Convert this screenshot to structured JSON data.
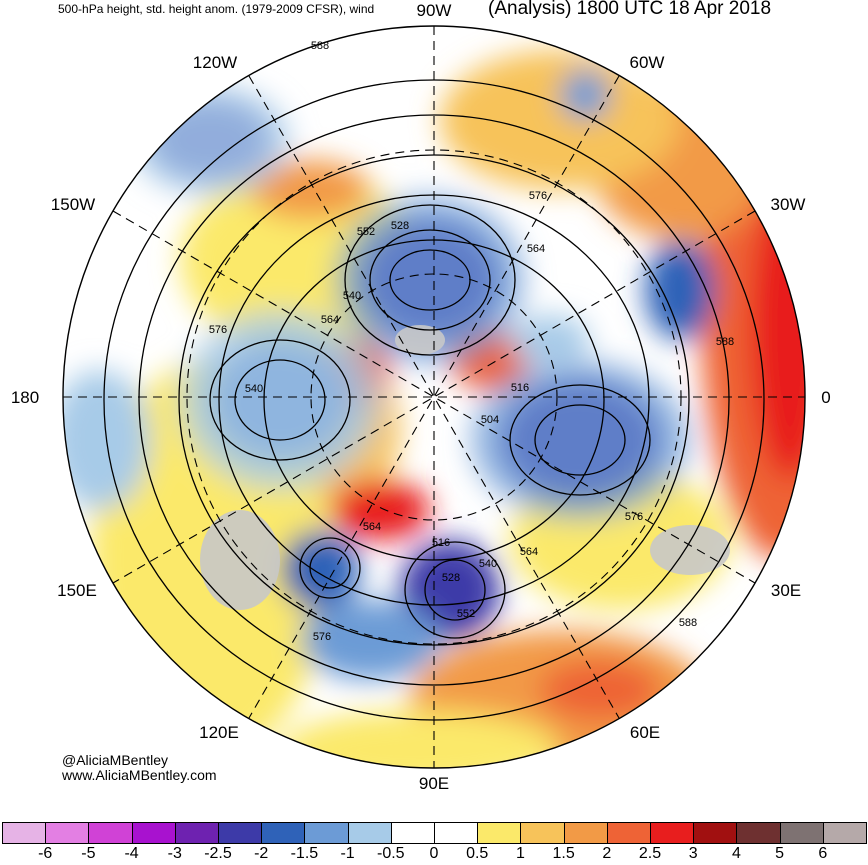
{
  "header": {
    "left": "500-hPa height, std. height anom. (1979-2009 CFSR), wind",
    "right": "(Analysis) 1800 UTC 18 Apr 2018"
  },
  "credits": {
    "twitter": "@AliciaMBentley",
    "website": "www.AliciaMBentley.com"
  },
  "longitude_labels": {
    "w90": "90W",
    "w60": "60W",
    "w30": "30W",
    "zero": "0",
    "e30": "30E",
    "e60": "60E",
    "e90": "90E",
    "e120": "120E",
    "e150": "150E",
    "d180": "180",
    "w150": "150W",
    "w120": "120W"
  },
  "contour_labels": [
    "588",
    "576",
    "564",
    "552",
    "528",
    "540",
    "564",
    "576",
    "540",
    "516",
    "504",
    "564",
    "516",
    "540",
    "528",
    "552",
    "564",
    "576",
    "576",
    "588",
    "588"
  ],
  "colorbar": {
    "colors": [
      "#e6b3e6",
      "#e37fe3",
      "#d042d6",
      "#a812cf",
      "#6e22b0",
      "#3d3aa8",
      "#2f62b8",
      "#6c9bd6",
      "#a7cbe8",
      "#ffffff",
      "#ffffff",
      "#fbe96a",
      "#f7c35a",
      "#f29a46",
      "#ee6336",
      "#e81e1e",
      "#a11010",
      "#6e3030",
      "#7e7272",
      "#b5a9a9"
    ],
    "ticks": [
      "-6",
      "-5",
      "-4",
      "-3",
      "-2.5",
      "-2",
      "-1.5",
      "-1",
      "-0.5",
      "0",
      "0.5",
      "1",
      "1.5",
      "2",
      "2.5",
      "3",
      "4",
      "5",
      "6"
    ]
  }
}
